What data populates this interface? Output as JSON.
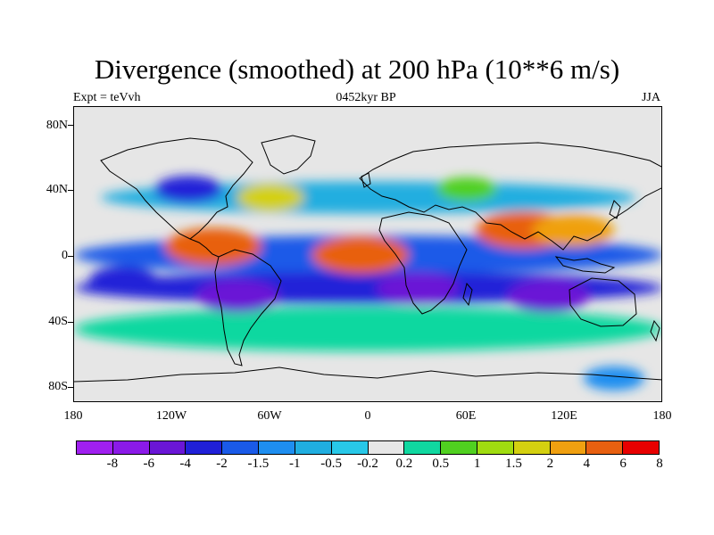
{
  "title": "Divergence (smoothed) at 200 hPa (10**6 m/s)",
  "subtitle_left": "Expt = teVvh",
  "subtitle_center": "0452kyr BP",
  "subtitle_right": "JJA",
  "y_ticks": [
    "80N",
    "40N",
    "0",
    "40S",
    "80S"
  ],
  "x_ticks": [
    "180",
    "120W",
    "60W",
    "0",
    "60E",
    "120E",
    "180"
  ],
  "colorbar": {
    "labels": [
      "-8",
      "-6",
      "-4",
      "-2",
      "-1.5",
      "-1",
      "-0.5",
      "-0.2",
      "0.2",
      "0.5",
      "1",
      "1.5",
      "2",
      "4",
      "6",
      "8"
    ],
    "colors": [
      "#a020f0",
      "#8b1ae8",
      "#6a16d6",
      "#2020d8",
      "#1a5ae8",
      "#1e8ef0",
      "#20aee0",
      "#28c8e8",
      "#e6e6e6",
      "#10d8a0",
      "#50d020",
      "#a0dc10",
      "#d4d010",
      "#f0a010",
      "#e86010",
      "#e80000"
    ]
  },
  "chart_data": {
    "type": "heatmap",
    "title": "Divergence (smoothed) at 200 hPa (10**6 m/s)",
    "projection": "cylindrical equidistant",
    "lon_range": [
      -180,
      180
    ],
    "lat_range": [
      -90,
      90
    ],
    "levels": [
      -8,
      -6,
      -4,
      -2,
      -1.5,
      -1,
      -0.5,
      -0.2,
      0.2,
      0.5,
      1,
      1.5,
      2,
      4,
      6,
      8
    ],
    "regions": [
      {
        "lon": -95,
        "lat": 5,
        "value": 6
      },
      {
        "lon": -5,
        "lat": 0,
        "value": 6
      },
      {
        "lon": 95,
        "lat": 15,
        "value": 6
      },
      {
        "lon": 125,
        "lat": 15,
        "value": 4
      },
      {
        "lon": -80,
        "lat": -25,
        "value": -4
      },
      {
        "lon": 30,
        "lat": -20,
        "value": -4
      },
      {
        "lon": 110,
        "lat": -25,
        "value": -4
      },
      {
        "lon": -150,
        "lat": -15,
        "value": -2
      },
      {
        "lon": -60,
        "lat": 35,
        "value": 2
      },
      {
        "lon": -110,
        "lat": 40,
        "value": -2
      },
      {
        "lon": 60,
        "lat": 40,
        "value": 1
      },
      {
        "lon": 150,
        "lat": -75,
        "value": -1
      }
    ]
  }
}
